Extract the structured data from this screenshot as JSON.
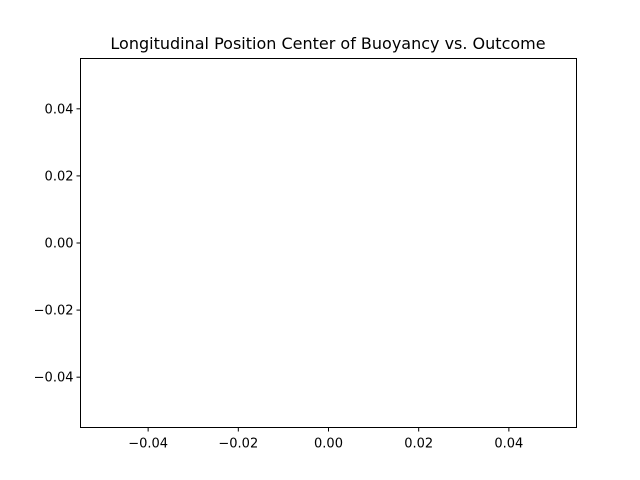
{
  "chart_data": {
    "type": "scatter",
    "title": "Longitudinal Position Center of Buoyancy vs. Outcome",
    "xlabel": "",
    "ylabel": "",
    "xlim": [
      -0.055,
      0.055
    ],
    "ylim": [
      -0.055,
      0.055
    ],
    "x_ticks": [
      -0.04,
      -0.02,
      0.0,
      0.02,
      0.04
    ],
    "x_tick_labels": [
      "−0.04",
      "−0.02",
      "0.00",
      "0.02",
      "0.04"
    ],
    "y_ticks": [
      -0.04,
      -0.02,
      0.0,
      0.02,
      0.04
    ],
    "y_tick_labels": [
      "−0.04",
      "−0.02",
      "0.00",
      "0.02",
      "0.04"
    ],
    "grid": false,
    "series": [
      {
        "x": [],
        "y": []
      }
    ]
  }
}
